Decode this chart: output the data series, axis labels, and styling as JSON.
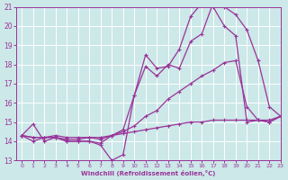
{
  "xlabel": "Windchill (Refroidissement éolien,°C)",
  "xlim": [
    -0.5,
    23
  ],
  "ylim": [
    13,
    21
  ],
  "yticks": [
    13,
    14,
    15,
    16,
    17,
    18,
    19,
    20,
    21
  ],
  "xticks": [
    0,
    1,
    2,
    3,
    4,
    5,
    6,
    7,
    8,
    9,
    10,
    11,
    12,
    13,
    14,
    15,
    16,
    17,
    18,
    19,
    20,
    21,
    22,
    23
  ],
  "background_color": "#cce8e8",
  "grid_color": "#ffffff",
  "line_color": "#993399",
  "lines": [
    {
      "x": [
        0,
        1,
        2,
        3,
        4,
        5,
        6,
        7,
        8,
        9,
        10,
        11,
        12,
        13,
        14,
        15,
        16,
        17,
        18,
        19,
        20,
        21,
        22,
        23
      ],
      "y": [
        14.3,
        14.9,
        14.0,
        14.2,
        14.0,
        14.0,
        14.0,
        13.8,
        13.0,
        13.3,
        16.4,
        17.9,
        17.4,
        18.0,
        17.8,
        19.2,
        19.6,
        21.2,
        21.0,
        20.6,
        19.8,
        18.2,
        15.8,
        15.3
      ]
    },
    {
      "x": [
        0,
        1,
        2,
        3,
        4,
        5,
        6,
        7,
        8,
        9,
        10,
        11,
        12,
        13,
        14,
        15,
        16,
        17,
        18,
        19,
        20,
        21,
        22,
        23
      ],
      "y": [
        14.3,
        14.0,
        14.2,
        14.2,
        14.0,
        14.0,
        14.0,
        13.9,
        14.3,
        14.6,
        16.4,
        18.5,
        17.8,
        17.9,
        18.8,
        20.5,
        21.2,
        21.0,
        20.0,
        19.5,
        15.0,
        15.1,
        15.0,
        15.3
      ]
    },
    {
      "x": [
        0,
        1,
        2,
        3,
        4,
        5,
        6,
        7,
        8,
        9,
        10,
        11,
        12,
        13,
        14,
        15,
        16,
        17,
        18,
        19,
        20,
        21,
        22,
        23
      ],
      "y": [
        14.3,
        14.2,
        14.2,
        14.2,
        14.1,
        14.1,
        14.2,
        14.1,
        14.3,
        14.5,
        14.8,
        15.3,
        15.6,
        16.2,
        16.6,
        17.0,
        17.4,
        17.7,
        18.1,
        18.2,
        15.8,
        15.1,
        15.0,
        15.3
      ]
    },
    {
      "x": [
        0,
        1,
        2,
        3,
        4,
        5,
        6,
        7,
        8,
        9,
        10,
        11,
        12,
        13,
        14,
        15,
        16,
        17,
        18,
        19,
        20,
        21,
        22,
        23
      ],
      "y": [
        14.3,
        14.2,
        14.2,
        14.3,
        14.2,
        14.2,
        14.2,
        14.2,
        14.3,
        14.4,
        14.5,
        14.6,
        14.7,
        14.8,
        14.9,
        15.0,
        15.0,
        15.1,
        15.1,
        15.1,
        15.1,
        15.1,
        15.1,
        15.3
      ]
    }
  ]
}
